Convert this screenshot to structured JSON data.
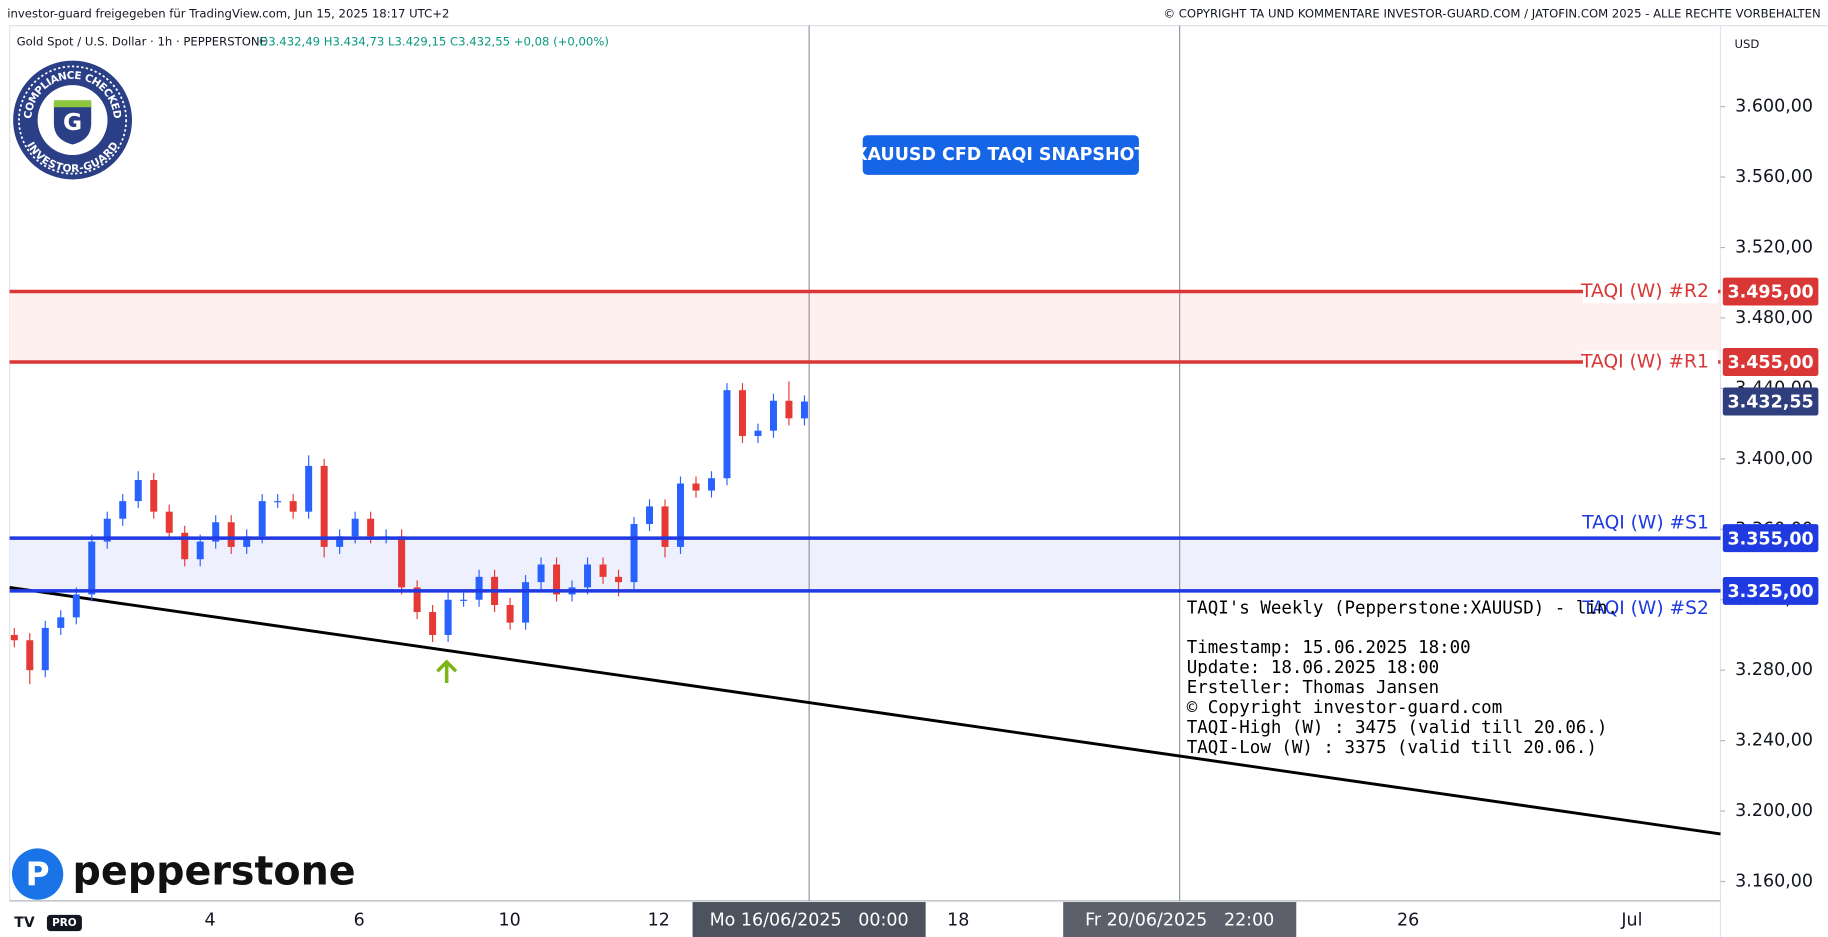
{
  "header": {
    "publisher": "investor-guard freigegeben für TradingView.com, Jun 15, 2025 18:17 UTC+2",
    "copyright": "© COPYRIGHT TA UND KOMMENTARE INVESTOR-GUARD.COM / JATOFIN.COM 2025 - ALLE RECHTE VORBEHALTEN",
    "symbol": "Gold Spot / U.S. Dollar · 1h · PEPPERSTONE",
    "ohlc": "O3.432,49 H3.434,73 L3.429,15 C3.432,55 +0,08 (+0,00%)"
  },
  "badge": {
    "top": "COMPLIANCE CHECKED",
    "bottom": "INVESTOR-GUARD",
    "letter": "G"
  },
  "broker_logo": "pepperstone",
  "tv_logo": "PRO",
  "chart_data": {
    "type": "candlestick",
    "title": "XAUUSD CFD TAQI SNAPSHOT",
    "currency": "USD",
    "up_color": "#2962ff",
    "down_color": "#e53935",
    "open": [
      3300,
      3297,
      3280,
      3304,
      3310,
      3323,
      3353,
      3366,
      3376,
      3388,
      3370,
      3358,
      3343,
      3353,
      3364,
      3350,
      3356,
      3376,
      3376,
      3370,
      3396,
      3350,
      3356,
      3366,
      3356,
      3356,
      3327,
      3313,
      3300,
      3320,
      3320,
      3333,
      3317,
      3307,
      3330,
      3340,
      3323,
      3327,
      3340,
      3333,
      3330,
      3363,
      3373,
      3350,
      3386,
      3382,
      3389,
      3439,
      3413,
      3416,
      3433,
      3423
    ],
    "high": [
      3304,
      3301,
      3308,
      3314,
      3327,
      3357,
      3370,
      3380,
      3393,
      3392,
      3374,
      3362,
      3357,
      3368,
      3368,
      3360,
      3380,
      3380,
      3380,
      3402,
      3400,
      3360,
      3370,
      3370,
      3360,
      3360,
      3331,
      3317,
      3324,
      3324,
      3337,
      3337,
      3321,
      3334,
      3344,
      3344,
      3331,
      3344,
      3344,
      3337,
      3367,
      3377,
      3377,
      3390,
      3390,
      3393,
      3443,
      3443,
      3420,
      3437,
      3444,
      3436
    ],
    "low": [
      3293,
      3272,
      3276,
      3300,
      3306,
      3319,
      3349,
      3362,
      3372,
      3366,
      3354,
      3339,
      3339,
      3349,
      3346,
      3346,
      3352,
      3372,
      3366,
      3366,
      3344,
      3346,
      3352,
      3352,
      3352,
      3323,
      3309,
      3296,
      3296,
      3316,
      3316,
      3313,
      3303,
      3303,
      3326,
      3319,
      3319,
      3323,
      3329,
      3322,
      3326,
      3359,
      3344,
      3346,
      3378,
      3378,
      3385,
      3409,
      3409,
      3412,
      3419,
      3419
    ],
    "close": [
      3297,
      3280,
      3304,
      3310,
      3323,
      3353,
      3366,
      3376,
      3388,
      3370,
      3358,
      3343,
      3353,
      3364,
      3350,
      3356,
      3376,
      3376,
      3370,
      3396,
      3350,
      3356,
      3366,
      3356,
      3356,
      3327,
      3313,
      3300,
      3320,
      3320,
      3333,
      3317,
      3307,
      3330,
      3340,
      3323,
      3327,
      3340,
      3333,
      3330,
      3363,
      3373,
      3350,
      3386,
      3382,
      3389,
      3439,
      3413,
      3416,
      3433,
      3423,
      3432.55
    ],
    "ylim": [
      3149,
      3646
    ],
    "yticks": [
      {
        "value": 3160,
        "label": "3.160,00"
      },
      {
        "value": 3200,
        "label": "3.200,00"
      },
      {
        "value": 3240,
        "label": "3.240,00"
      },
      {
        "value": 3280,
        "label": "3.280,00"
      },
      {
        "value": 3320,
        "label": "3.320,00"
      },
      {
        "value": 3360,
        "label": "3.360,00"
      },
      {
        "value": 3400,
        "label": "3.400,00"
      },
      {
        "value": 3440,
        "label": "3.440,00"
      },
      {
        "value": 3480,
        "label": "3.480,00"
      },
      {
        "value": 3520,
        "label": "3.520,00"
      },
      {
        "value": 3560,
        "label": "3.560,00"
      },
      {
        "value": 3600,
        "label": "3.600,00"
      }
    ],
    "x_labels": [
      "4",
      "6",
      "10",
      "12",
      "Mo 16/06/2025   00:00",
      "18",
      "Fr 20/06/2025   22:00",
      "26",
      "Jul"
    ],
    "zones": [
      {
        "from": 3455,
        "to": 3495,
        "color": "#fff0f0"
      },
      {
        "from": 3325,
        "to": 3355,
        "color": "#eef0fd"
      }
    ],
    "levels": [
      {
        "name": "TAQI (W) #R2",
        "value": 3495,
        "value_label": "3.495,00",
        "color": "#d93636"
      },
      {
        "name": "TAQI (W) #R1",
        "value": 3455,
        "value_label": "3.455,00",
        "color": "#d93636"
      },
      {
        "name": "TAQI (W) #S1",
        "value": 3355,
        "value_label": "3.355,00",
        "color": "#1e3ae0"
      },
      {
        "name": "TAQI (W) #S2",
        "value": 3325,
        "value_label": "3.325,00",
        "color": "#1e3ae0"
      }
    ],
    "trendline": {
      "values": [
        3327,
        3187
      ],
      "color": "#000000"
    },
    "last_price": {
      "value": 3432.55,
      "label": "3.432,55",
      "color": "#2f3e7c"
    },
    "info_title": "TAQI's Weekly (Pepperstone:XAUUSD) - lin.",
    "info_lines": [
      "Timestamp: 15.06.2025 18:00",
      "Update: 18.06.2025 18:00",
      "Ersteller: Thomas Jansen",
      "© Copyright investor-guard.com",
      "TAQI-High (W) : 3475 (valid till 20.06.)",
      "TAQI-Low (W) : 3375 (valid till 20.06.)"
    ]
  }
}
